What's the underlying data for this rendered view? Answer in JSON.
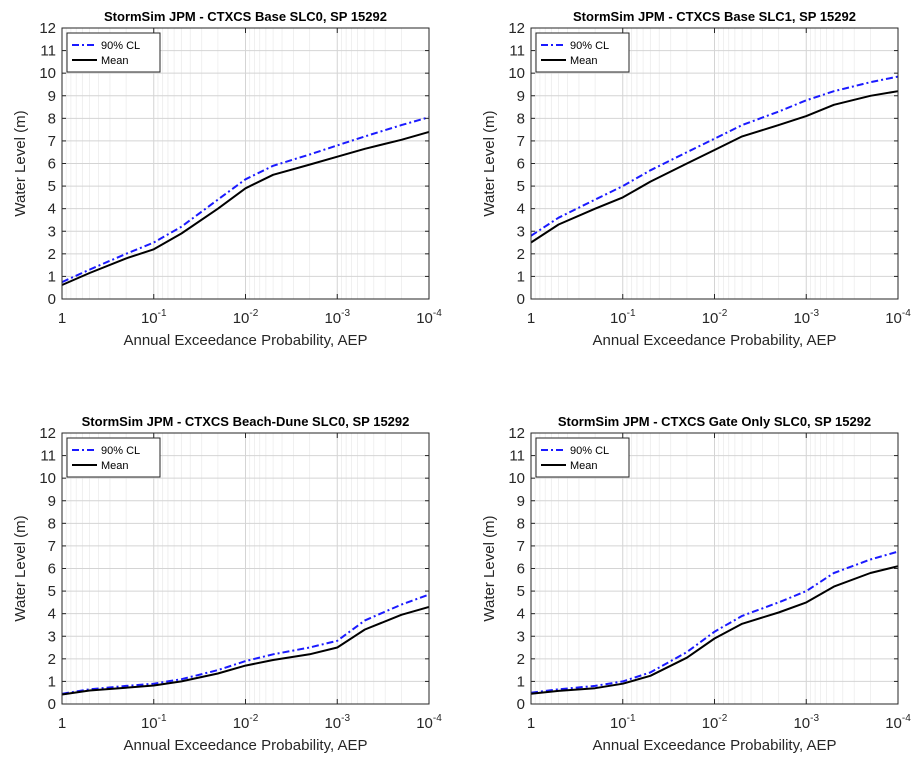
{
  "chart_data": [
    {
      "type": "line",
      "title": "StormSim JPM - CTXCS Base SLC0, SP 15292",
      "xlabel": "Annual Exceedance Probability, AEP",
      "ylabel": "Water Level (m)",
      "xscale": "log-reversed",
      "xlim": [
        1,
        0.0001
      ],
      "ylim": [
        0,
        12
      ],
      "xticklabels": [
        {
          "base": "1",
          "exp": ""
        },
        {
          "base": "10",
          "exp": "-1"
        },
        {
          "base": "10",
          "exp": "-2"
        },
        {
          "base": "10",
          "exp": "-3"
        },
        {
          "base": "10",
          "exp": "-4"
        }
      ],
      "yticks": [
        0,
        1,
        2,
        3,
        4,
        5,
        6,
        7,
        8,
        9,
        10,
        11,
        12
      ],
      "grid": true,
      "legend": "top-left",
      "series": [
        {
          "name": "90% CL",
          "color": "#1a1aff",
          "style": "dash-dot",
          "x": [
            1,
            0.5,
            0.2,
            0.1,
            0.05,
            0.02,
            0.01,
            0.005,
            0.002,
            0.001,
            0.0005,
            0.0002,
            0.0001
          ],
          "y": [
            0.75,
            1.3,
            2.0,
            2.5,
            3.2,
            4.4,
            5.3,
            5.9,
            6.4,
            6.8,
            7.2,
            7.7,
            8.05
          ]
        },
        {
          "name": "Mean",
          "color": "#000000",
          "style": "solid",
          "x": [
            1,
            0.5,
            0.2,
            0.1,
            0.05,
            0.02,
            0.01,
            0.005,
            0.002,
            0.001,
            0.0005,
            0.0002,
            0.0001
          ],
          "y": [
            0.62,
            1.15,
            1.8,
            2.2,
            2.9,
            4.0,
            4.9,
            5.5,
            5.95,
            6.3,
            6.65,
            7.05,
            7.4
          ]
        }
      ]
    },
    {
      "type": "line",
      "title": "StormSim JPM - CTXCS Base SLC1, SP 15292",
      "xlabel": "Annual Exceedance Probability, AEP",
      "ylabel": "Water Level (m)",
      "xscale": "log-reversed",
      "xlim": [
        1,
        0.0001
      ],
      "ylim": [
        0,
        12
      ],
      "xticklabels": [
        {
          "base": "1",
          "exp": ""
        },
        {
          "base": "10",
          "exp": "-1"
        },
        {
          "base": "10",
          "exp": "-2"
        },
        {
          "base": "10",
          "exp": "-3"
        },
        {
          "base": "10",
          "exp": "-4"
        }
      ],
      "yticks": [
        0,
        1,
        2,
        3,
        4,
        5,
        6,
        7,
        8,
        9,
        10,
        11,
        12
      ],
      "grid": true,
      "legend": "top-left",
      "series": [
        {
          "name": "90% CL",
          "color": "#1a1aff",
          "style": "dash-dot",
          "x": [
            1,
            0.5,
            0.2,
            0.1,
            0.05,
            0.02,
            0.01,
            0.005,
            0.002,
            0.001,
            0.0005,
            0.0002,
            0.0001
          ],
          "y": [
            2.8,
            3.6,
            4.4,
            5.0,
            5.7,
            6.5,
            7.1,
            7.7,
            8.3,
            8.8,
            9.2,
            9.6,
            9.85
          ]
        },
        {
          "name": "Mean",
          "color": "#000000",
          "style": "solid",
          "x": [
            1,
            0.5,
            0.2,
            0.1,
            0.05,
            0.02,
            0.01,
            0.005,
            0.002,
            0.001,
            0.0005,
            0.0002,
            0.0001
          ],
          "y": [
            2.5,
            3.3,
            4.0,
            4.5,
            5.2,
            6.0,
            6.6,
            7.2,
            7.7,
            8.1,
            8.6,
            9.0,
            9.2
          ]
        }
      ]
    },
    {
      "type": "line",
      "title": "StormSim JPM - CTXCS Beach-Dune SLC0, SP 15292",
      "xlabel": "Annual Exceedance Probability, AEP",
      "ylabel": "Water Level (m)",
      "xscale": "log-reversed",
      "xlim": [
        1,
        0.0001
      ],
      "ylim": [
        0,
        12
      ],
      "xticklabels": [
        {
          "base": "1",
          "exp": ""
        },
        {
          "base": "10",
          "exp": "-1"
        },
        {
          "base": "10",
          "exp": "-2"
        },
        {
          "base": "10",
          "exp": "-3"
        },
        {
          "base": "10",
          "exp": "-4"
        }
      ],
      "yticks": [
        0,
        1,
        2,
        3,
        4,
        5,
        6,
        7,
        8,
        9,
        10,
        11,
        12
      ],
      "grid": true,
      "legend": "top-left",
      "series": [
        {
          "name": "90% CL",
          "color": "#1a1aff",
          "style": "dash-dot",
          "x": [
            1,
            0.5,
            0.2,
            0.1,
            0.05,
            0.02,
            0.01,
            0.005,
            0.002,
            0.001,
            0.0005,
            0.0002,
            0.0001
          ],
          "y": [
            0.45,
            0.65,
            0.8,
            0.9,
            1.1,
            1.5,
            1.9,
            2.2,
            2.5,
            2.8,
            3.7,
            4.4,
            4.85
          ]
        },
        {
          "name": "Mean",
          "color": "#000000",
          "style": "solid",
          "x": [
            1,
            0.5,
            0.2,
            0.1,
            0.05,
            0.02,
            0.01,
            0.005,
            0.002,
            0.001,
            0.0005,
            0.0002,
            0.0001
          ],
          "y": [
            0.42,
            0.6,
            0.72,
            0.82,
            1.0,
            1.35,
            1.7,
            1.95,
            2.2,
            2.5,
            3.3,
            3.95,
            4.3
          ]
        }
      ]
    },
    {
      "type": "line",
      "title": "StormSim JPM - CTXCS Gate Only SLC0, SP 15292",
      "xlabel": "Annual Exceedance Probability, AEP",
      "ylabel": "Water Level (m)",
      "xscale": "log-reversed",
      "xlim": [
        1,
        0.0001
      ],
      "ylim": [
        0,
        12
      ],
      "xticklabels": [
        {
          "base": "1",
          "exp": ""
        },
        {
          "base": "10",
          "exp": "-1"
        },
        {
          "base": "10",
          "exp": "-2"
        },
        {
          "base": "10",
          "exp": "-3"
        },
        {
          "base": "10",
          "exp": "-4"
        }
      ],
      "yticks": [
        0,
        1,
        2,
        3,
        4,
        5,
        6,
        7,
        8,
        9,
        10,
        11,
        12
      ],
      "grid": true,
      "legend": "top-left",
      "series": [
        {
          "name": "90% CL",
          "color": "#1a1aff",
          "style": "dash-dot",
          "x": [
            1,
            0.5,
            0.2,
            0.1,
            0.05,
            0.02,
            0.01,
            0.005,
            0.002,
            0.001,
            0.0005,
            0.0002,
            0.0001
          ],
          "y": [
            0.5,
            0.65,
            0.8,
            1.0,
            1.4,
            2.3,
            3.2,
            3.9,
            4.5,
            5.0,
            5.8,
            6.4,
            6.75
          ]
        },
        {
          "name": "Mean",
          "color": "#000000",
          "style": "solid",
          "x": [
            1,
            0.5,
            0.2,
            0.1,
            0.05,
            0.02,
            0.01,
            0.005,
            0.002,
            0.001,
            0.0005,
            0.0002,
            0.0001
          ],
          "y": [
            0.45,
            0.58,
            0.7,
            0.9,
            1.25,
            2.05,
            2.9,
            3.55,
            4.05,
            4.5,
            5.2,
            5.8,
            6.1
          ]
        }
      ]
    }
  ]
}
